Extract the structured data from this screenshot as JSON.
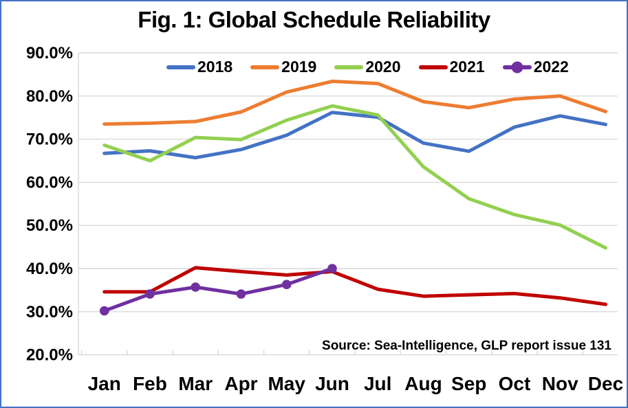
{
  "frame": {
    "background_color": "#FFFFFF",
    "border_color": "#4472C4",
    "gridline_color": "#D9D9D9",
    "text_color": "#000000"
  },
  "chart_data": {
    "type": "line",
    "title": "Fig. 1: Global Schedule Reliability",
    "source": "Source: Sea-Intelligence, GLP report issue 131",
    "xlabel": "",
    "ylabel": "",
    "grid": "horizontal",
    "legend_position": "top",
    "ylim": [
      20,
      90
    ],
    "y_ticks": [
      {
        "label": "90.0%",
        "value": 90
      },
      {
        "label": "80.0%",
        "value": 80
      },
      {
        "label": "70.0%",
        "value": 70
      },
      {
        "label": "60.0%",
        "value": 60
      },
      {
        "label": "50.0%",
        "value": 50
      },
      {
        "label": "40.0%",
        "value": 40
      },
      {
        "label": "30.0%",
        "value": 30
      },
      {
        "label": "20.0%",
        "value": 20
      }
    ],
    "categories": [
      "Jan",
      "Feb",
      "Mar",
      "Apr",
      "May",
      "Jun",
      "Jul",
      "Aug",
      "Sep",
      "Oct",
      "Nov",
      "Dec"
    ],
    "series": [
      {
        "name": "2018",
        "color": "#4472C4",
        "marker": "none",
        "values": [
          66.7,
          67.3,
          65.7,
          67.6,
          70.9,
          76.2,
          75.1,
          69.1,
          67.2,
          72.8,
          75.4,
          73.4
        ]
      },
      {
        "name": "2019",
        "color": "#ED7D31",
        "marker": "none",
        "values": [
          73.5,
          73.7,
          74.1,
          76.3,
          80.9,
          83.4,
          82.9,
          78.7,
          77.3,
          79.3,
          80.0,
          76.4
        ]
      },
      {
        "name": "2020",
        "color": "#92D050",
        "marker": "none",
        "values": [
          68.6,
          65.0,
          70.4,
          69.9,
          74.4,
          77.7,
          75.6,
          63.6,
          56.2,
          52.5,
          50.1,
          44.8
        ]
      },
      {
        "name": "2021",
        "color": "#C00000",
        "marker": "none",
        "values": [
          34.6,
          34.6,
          40.2,
          39.3,
          38.5,
          39.3,
          35.2,
          33.6,
          33.9,
          34.2,
          33.2,
          31.7
        ]
      },
      {
        "name": "2022",
        "color": "#7030A0",
        "marker": "circle",
        "values": [
          30.2,
          34.1,
          35.7,
          34.1,
          36.3,
          40.0
        ]
      }
    ]
  }
}
